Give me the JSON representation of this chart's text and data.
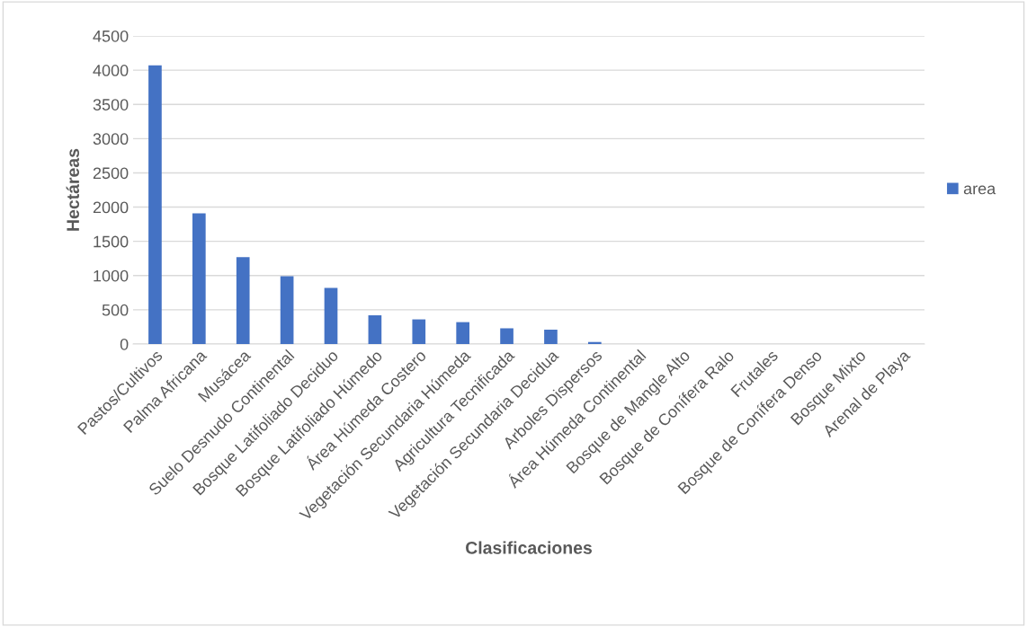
{
  "chart_data": {
    "type": "bar",
    "xlabel": "Clasificaciones",
    "ylabel": "Hectáreas",
    "categories": [
      "Pastos/Cultivos",
      "Palma Africana",
      "Musácea",
      "Suelo Desnudo Continental",
      "Bosque Latifoliado Deciduo",
      "Bosque Latifoliado Húmedo",
      "Área Húmeda Costero",
      "Vegetación Secundaria Húmeda",
      "Agricultura Tecnificada",
      "Vegetación Secundaria Decidua",
      "Arboles Dispersos",
      "Área Húmeda Continental",
      "Bosque de Mangle Alto",
      "Bosque de Conífera Ralo",
      "Frutales",
      "Bosque de Conífera Denso",
      "Bosque Mixto",
      "Arenal de Playa"
    ],
    "series": [
      {
        "name": "area",
        "color": "#4472c4",
        "values": [
          4070,
          1910,
          1270,
          990,
          820,
          420,
          360,
          320,
          230,
          210,
          30,
          0,
          0,
          0,
          0,
          0,
          0,
          0
        ]
      }
    ],
    "ylim": [
      0,
      4500
    ],
    "yticks": [
      0,
      500,
      1000,
      1500,
      2000,
      2500,
      3000,
      3500,
      4000,
      4500
    ],
    "grid": "y",
    "legend": "right"
  }
}
